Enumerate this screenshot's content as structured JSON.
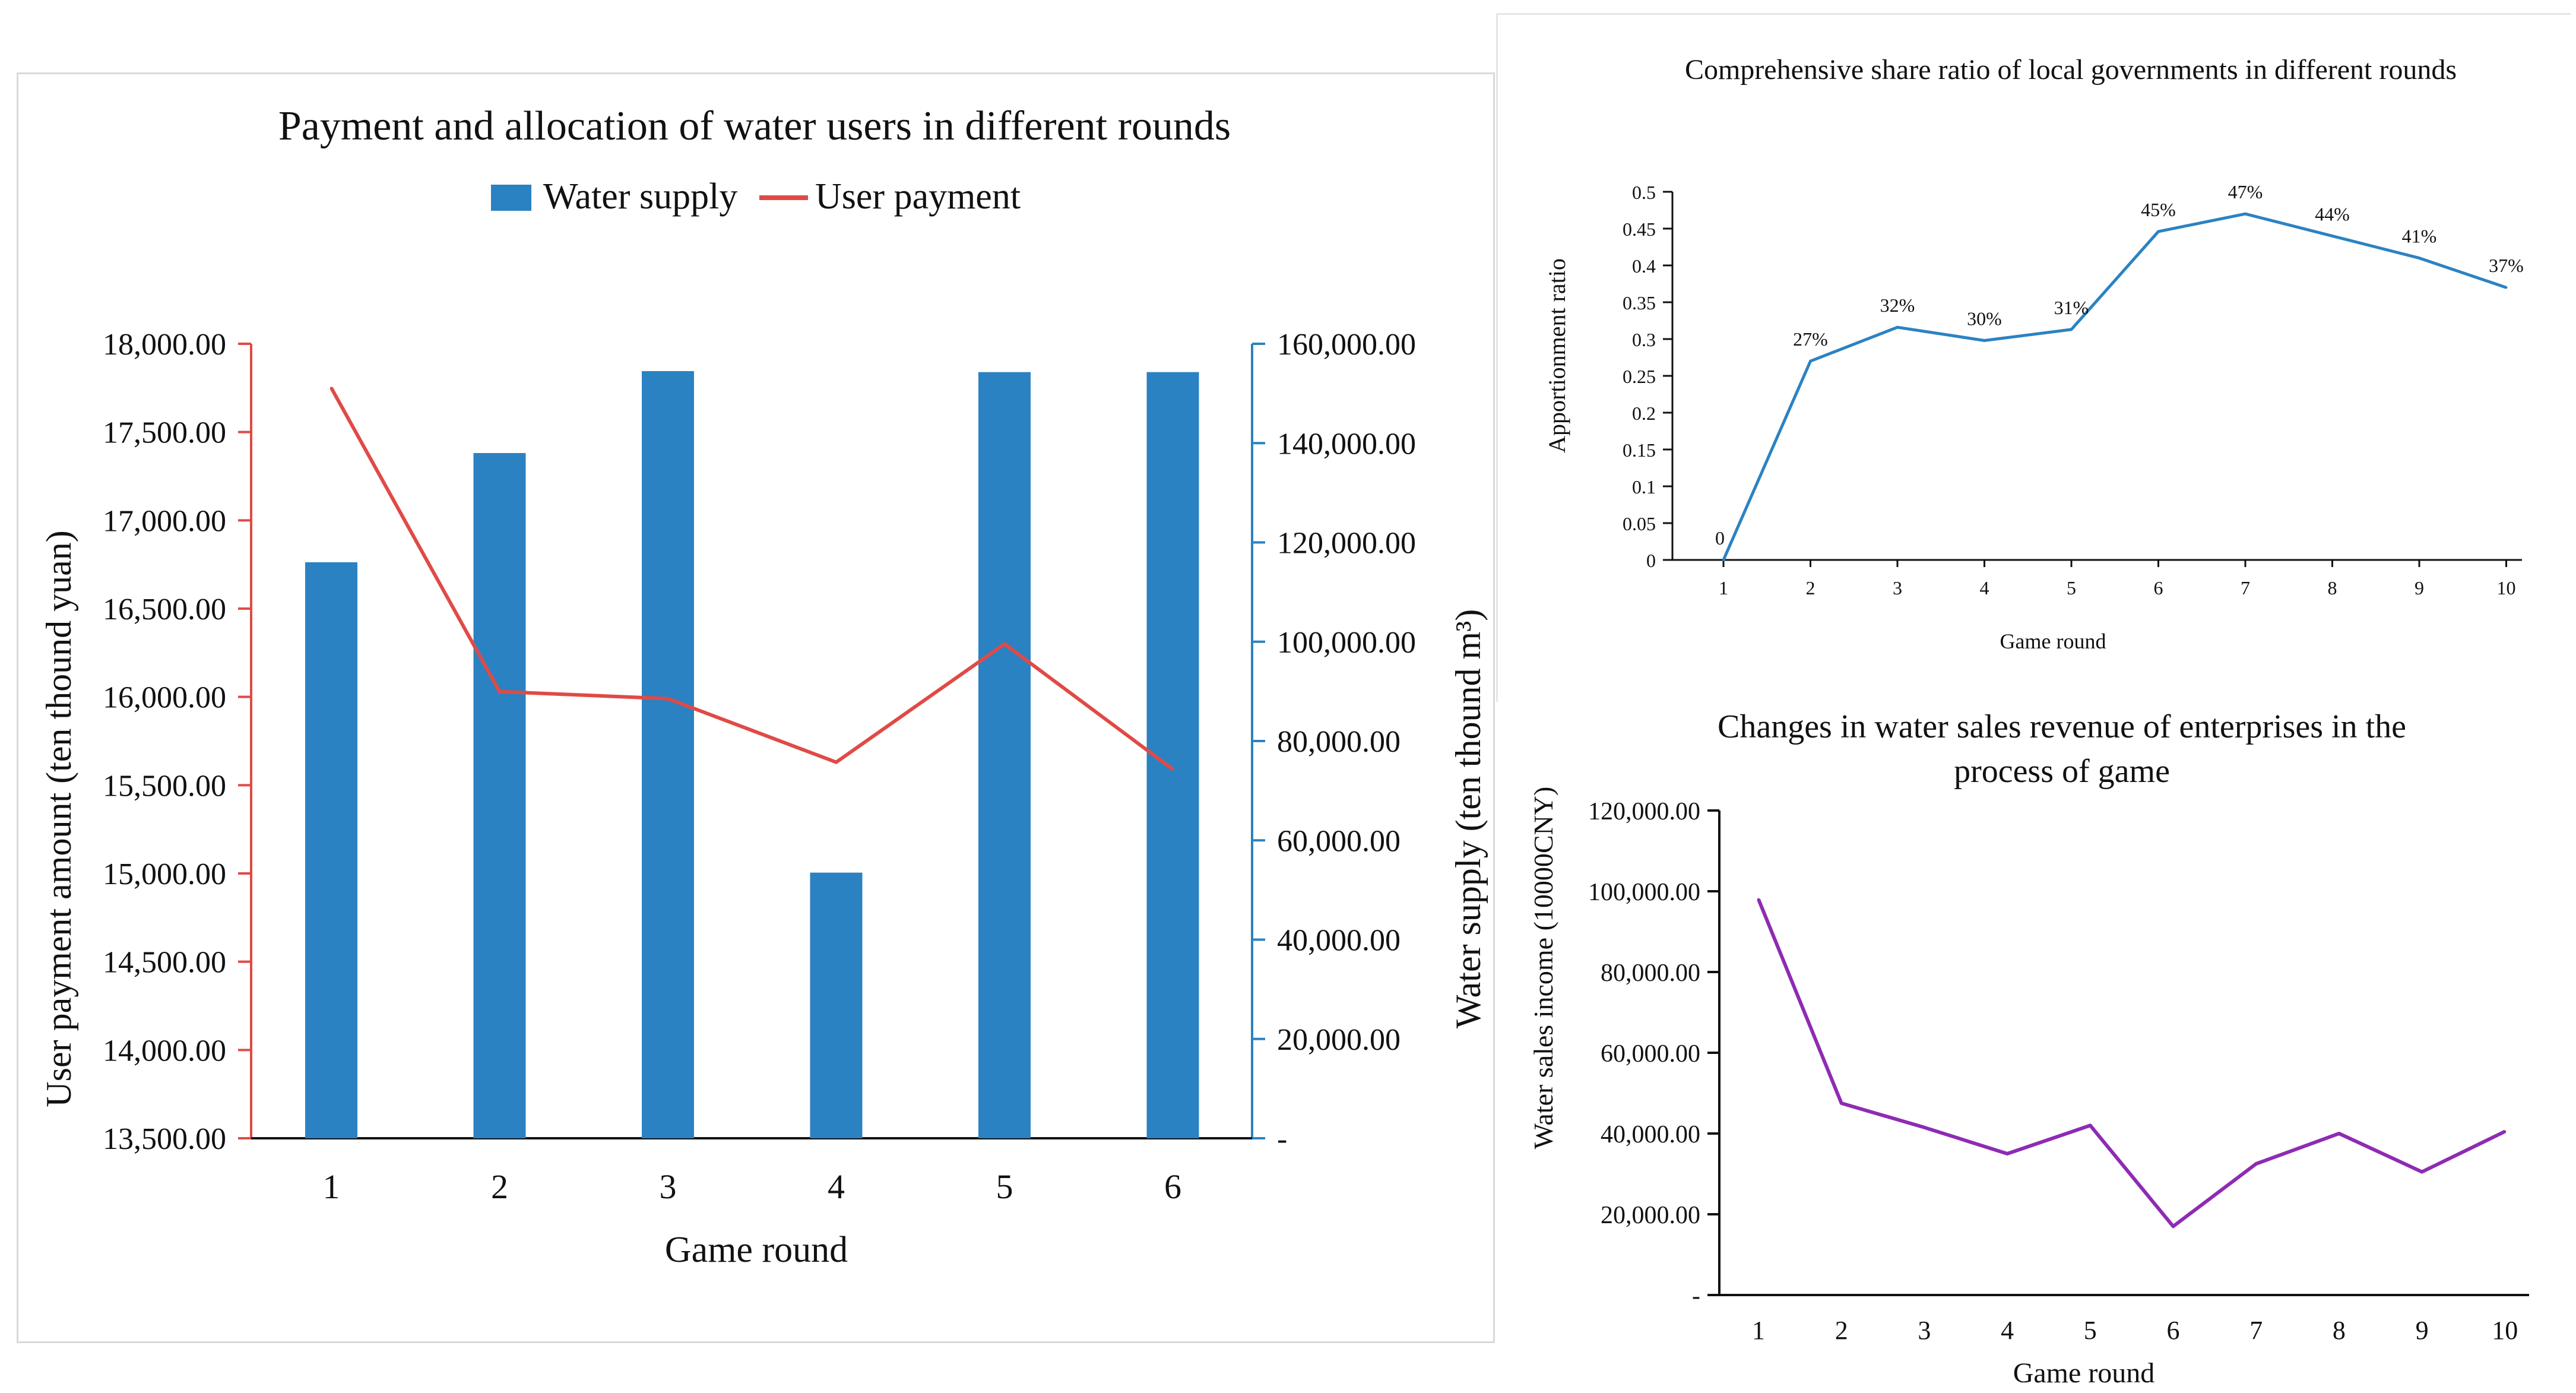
{
  "chart_data": [
    {
      "type": "bar+line",
      "title": "Payment and allocation of water users in different rounds",
      "categories": [
        "1",
        "2",
        "3",
        "4",
        "5",
        "6"
      ],
      "series": [
        {
          "name": "Water supply",
          "kind": "bar",
          "axis": "right",
          "color": "#2b82c2",
          "values": [
            116000,
            138000,
            154500,
            53500,
            154300,
            154300
          ]
        },
        {
          "name": "User payment",
          "kind": "line",
          "axis": "left",
          "color": "#e04a46",
          "values": [
            17750,
            16030,
            15990,
            15630,
            16300,
            15590
          ]
        }
      ],
      "xlabel": "Game round",
      "ylabel": "User payment amount (ten thound yuan)",
      "ylabel_right": "Water supply (ten thound m³)",
      "ylim": [
        13500,
        18000
      ],
      "ylim_right": [
        0,
        160000
      ],
      "yticks": [
        "18,000.00",
        "17,500.00",
        "17,000.00",
        "16,500.00",
        "16,000.00",
        "15,500.00",
        "15,000.00",
        "14,500.00",
        "14,000.00",
        "13,500.00"
      ],
      "yticks_right": [
        "160,000.00",
        "140,000.00",
        "120,000.00",
        "100,000.00",
        "80,000.00",
        "60,000.00",
        "40,000.00",
        "20,000.00",
        "-"
      ],
      "legend": "top-center",
      "axis_color_left": "#e04a46",
      "axis_color_right": "#2b82c2"
    },
    {
      "type": "line",
      "title": "Comprehensive share ratio of local governments in different rounds",
      "x": [
        "1",
        "2",
        "3",
        "4",
        "5",
        "6",
        "7",
        "8",
        "9",
        "10"
      ],
      "values": [
        0,
        0.27,
        0.316,
        0.298,
        0.313,
        0.446,
        0.47,
        0.44,
        0.41,
        0.37
      ],
      "data_labels": [
        "0",
        "27%",
        "32%",
        "30%",
        "31%",
        "45%",
        "47%",
        "44%",
        "41%",
        "37%"
      ],
      "xlabel": "Game round",
      "ylabel": "Apportionment ratio",
      "ylim": [
        0,
        0.5
      ],
      "yticks": [
        "0.5",
        "0.45",
        "0.4",
        "0.35",
        "0.3",
        "0.25",
        "0.2",
        "0.15",
        "0.1",
        "0.05",
        "0"
      ],
      "color": "#2b82c2"
    },
    {
      "type": "line",
      "title_line1": "Changes in water sales revenue of enterprises in the",
      "title_line2": "process of game",
      "x": [
        "1",
        "2",
        "3",
        "4",
        "5",
        "6",
        "7",
        "8",
        "9",
        "10"
      ],
      "values": [
        98000,
        47500,
        41500,
        35000,
        42000,
        17000,
        32500,
        40000,
        30500,
        40500
      ],
      "xlabel": "Game round",
      "ylabel": "Water sales income (10000CNY)",
      "ylim": [
        0,
        120000
      ],
      "yticks": [
        "120,000.00",
        "100,000.00",
        "80,000.00",
        "60,000.00",
        "40,000.00",
        "20,000.00",
        "-"
      ],
      "color": "#8e2bb3"
    }
  ]
}
